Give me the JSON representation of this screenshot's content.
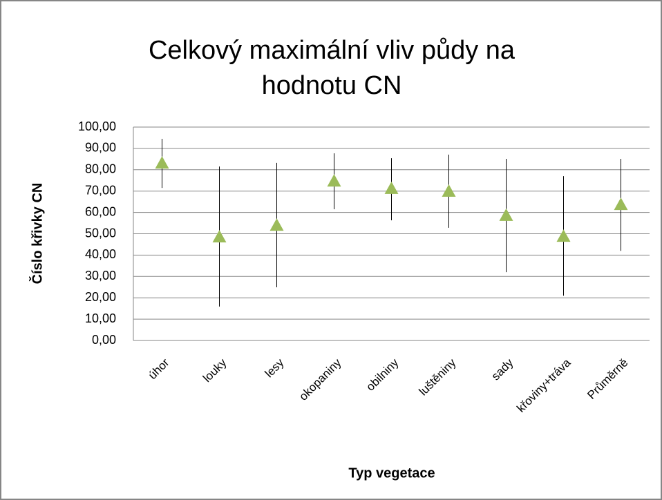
{
  "chart_data": {
    "type": "errorbar",
    "title": [
      "Celkový maximální vliv půdy na",
      "hodnotu CN"
    ],
    "x_label": "Typ vegetace",
    "y_label": "Číslo křivky CN",
    "categories": [
      "úhor",
      "louky",
      "lesy",
      "okopaniny",
      "obilniny",
      "luštěniny",
      "sady",
      "křoviny+tráva",
      "Průměrně"
    ],
    "values": [
      82.8,
      48.2,
      53.7,
      74.4,
      70.9,
      69.6,
      58.3,
      48.5,
      63.4
    ],
    "high": [
      94.5,
      81.5,
      83.2,
      87.7,
      85.4,
      87.1,
      85.1,
      77.0,
      85.1
    ],
    "low": [
      71.5,
      15.9,
      24.9,
      61.5,
      56.3,
      52.8,
      32.0,
      21.0,
      42.0
    ],
    "color": "#9bbb59",
    "ylim": [
      0,
      100
    ],
    "yticks": [
      {
        "value": 0,
        "label": "0,00"
      },
      {
        "value": 10,
        "label": "10,00"
      },
      {
        "value": 20,
        "label": "20,00"
      },
      {
        "value": 30,
        "label": "30,00"
      },
      {
        "value": 40,
        "label": "40,00"
      },
      {
        "value": 50,
        "label": "50,00"
      },
      {
        "value": 60,
        "label": "60,00"
      },
      {
        "value": 70,
        "label": "70,00"
      },
      {
        "value": 80,
        "label": "80,00"
      },
      {
        "value": 90,
        "label": "90,00"
      },
      {
        "value": 100,
        "label": "100,00"
      }
    ],
    "grid": true
  }
}
